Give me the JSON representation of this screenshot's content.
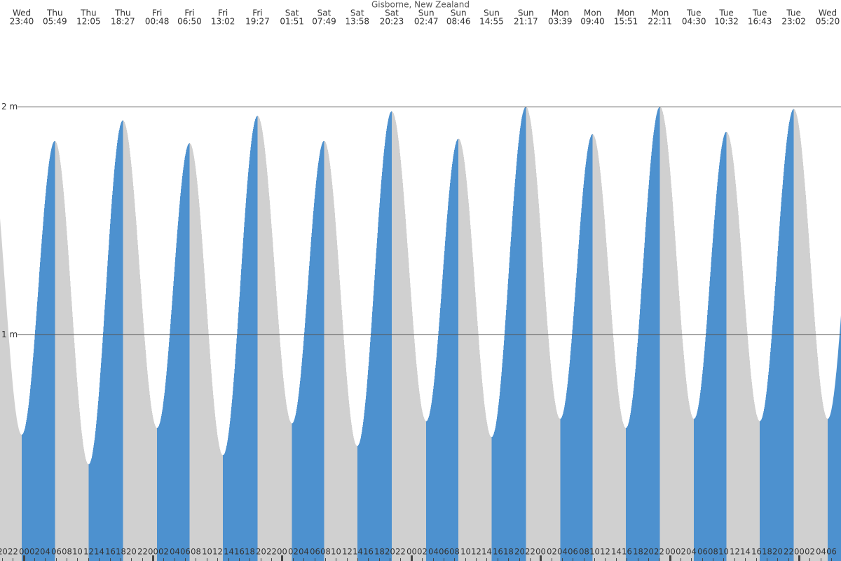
{
  "chart_data": {
    "type": "tide",
    "title": "Gisborne, New Zealand",
    "days": [
      "Wed",
      "Thu",
      "Thu",
      "Thu",
      "Fri",
      "Fri",
      "Fri",
      "Fri",
      "Sat",
      "Sat",
      "Sat",
      "Sat",
      "Sun",
      "Sun",
      "Sun",
      "Sun",
      "Mon",
      "Mon",
      "Mon",
      "Mon",
      "Tue",
      "Tue",
      "Tue",
      "Tue",
      "Wed"
    ],
    "times": [
      "23:40",
      "05:49",
      "12:05",
      "18:27",
      "00:48",
      "06:50",
      "13:02",
      "19:27",
      "01:51",
      "07:49",
      "13:58",
      "20:23",
      "02:47",
      "08:46",
      "14:55",
      "21:17",
      "03:39",
      "09:40",
      "15:51",
      "22:11",
      "04:30",
      "10:32",
      "16:43",
      "23:02",
      "05:20"
    ],
    "x": [
      23.67,
      29.82,
      36.08,
      42.45,
      48.8,
      54.83,
      61.03,
      67.45,
      73.85,
      79.82,
      85.97,
      92.38,
      98.78,
      104.77,
      110.92,
      117.28,
      123.65,
      129.67,
      135.85,
      142.18,
      148.5,
      154.53,
      160.72,
      167.03,
      173.33
    ],
    "values": [
      0.56,
      1.85,
      0.43,
      1.94,
      0.59,
      1.84,
      0.47,
      1.96,
      0.61,
      1.85,
      0.51,
      1.98,
      0.62,
      1.86,
      0.55,
      2.0,
      0.63,
      1.88,
      0.59,
      2.0,
      0.63,
      1.89,
      0.62,
      1.99,
      0.63
    ],
    "rising_color": "#4d91cf",
    "falling_color": "#d0d0d0",
    "ylim": [
      0,
      2.468
    ],
    "yticks": [
      {
        "value": 2,
        "label": "2 m"
      },
      {
        "value": 1,
        "label": "1 m"
      }
    ],
    "xlim": [
      19.63,
      175.8
    ],
    "xticks": [
      {
        "value": 20,
        "label": "20"
      },
      {
        "value": 22,
        "label": "22"
      },
      {
        "value": 24,
        "label": "00"
      },
      {
        "value": 26,
        "label": "02"
      },
      {
        "value": 28,
        "label": "04"
      },
      {
        "value": 30,
        "label": "06"
      },
      {
        "value": 32,
        "label": "08"
      },
      {
        "value": 34,
        "label": "10"
      },
      {
        "value": 36,
        "label": "12"
      },
      {
        "value": 38,
        "label": "14"
      },
      {
        "value": 40,
        "label": "16"
      },
      {
        "value": 42,
        "label": "18"
      },
      {
        "value": 44,
        "label": "20"
      },
      {
        "value": 46,
        "label": "22"
      },
      {
        "value": 48,
        "label": "00"
      },
      {
        "value": 50,
        "label": "02"
      },
      {
        "value": 52,
        "label": "04"
      },
      {
        "value": 54,
        "label": "06"
      },
      {
        "value": 56,
        "label": "08"
      },
      {
        "value": 58,
        "label": "10"
      },
      {
        "value": 60,
        "label": "12"
      },
      {
        "value": 62,
        "label": "14"
      },
      {
        "value": 64,
        "label": "16"
      },
      {
        "value": 66,
        "label": "18"
      },
      {
        "value": 68,
        "label": "20"
      },
      {
        "value": 70,
        "label": "22"
      },
      {
        "value": 72,
        "label": "00"
      },
      {
        "value": 74,
        "label": "02"
      },
      {
        "value": 76,
        "label": "04"
      },
      {
        "value": 78,
        "label": "06"
      },
      {
        "value": 80,
        "label": "08"
      },
      {
        "value": 82,
        "label": "10"
      },
      {
        "value": 84,
        "label": "12"
      },
      {
        "value": 86,
        "label": "14"
      },
      {
        "value": 88,
        "label": "16"
      },
      {
        "value": 90,
        "label": "18"
      },
      {
        "value": 92,
        "label": "20"
      },
      {
        "value": 94,
        "label": "22"
      },
      {
        "value": 96,
        "label": "00"
      },
      {
        "value": 98,
        "label": "02"
      },
      {
        "value": 100,
        "label": "04"
      },
      {
        "value": 102,
        "label": "06"
      },
      {
        "value": 104,
        "label": "08"
      },
      {
        "value": 106,
        "label": "10"
      },
      {
        "value": 108,
        "label": "12"
      },
      {
        "value": 110,
        "label": "14"
      },
      {
        "value": 112,
        "label": "16"
      },
      {
        "value": 114,
        "label": "18"
      },
      {
        "value": 116,
        "label": "20"
      },
      {
        "value": 118,
        "label": "22"
      },
      {
        "value": 120,
        "label": "00"
      },
      {
        "value": 122,
        "label": "02"
      },
      {
        "value": 124,
        "label": "04"
      },
      {
        "value": 126,
        "label": "06"
      },
      {
        "value": 128,
        "label": "08"
      },
      {
        "value": 130,
        "label": "10"
      },
      {
        "value": 132,
        "label": "12"
      },
      {
        "value": 134,
        "label": "14"
      },
      {
        "value": 136,
        "label": "16"
      },
      {
        "value": 138,
        "label": "18"
      },
      {
        "value": 140,
        "label": "20"
      },
      {
        "value": 142,
        "label": "22"
      },
      {
        "value": 144,
        "label": "00"
      },
      {
        "value": 146,
        "label": "02"
      },
      {
        "value": 148,
        "label": "04"
      },
      {
        "value": 150,
        "label": "06"
      },
      {
        "value": 152,
        "label": "08"
      },
      {
        "value": 154,
        "label": "10"
      },
      {
        "value": 156,
        "label": "12"
      },
      {
        "value": 158,
        "label": "14"
      },
      {
        "value": 160,
        "label": "16"
      },
      {
        "value": 162,
        "label": "18"
      },
      {
        "value": 164,
        "label": "20"
      },
      {
        "value": 166,
        "label": "22"
      },
      {
        "value": 168,
        "label": "00"
      },
      {
        "value": 170,
        "label": "02"
      },
      {
        "value": 172,
        "label": "04"
      },
      {
        "value": 174,
        "label": "06"
      }
    ]
  }
}
